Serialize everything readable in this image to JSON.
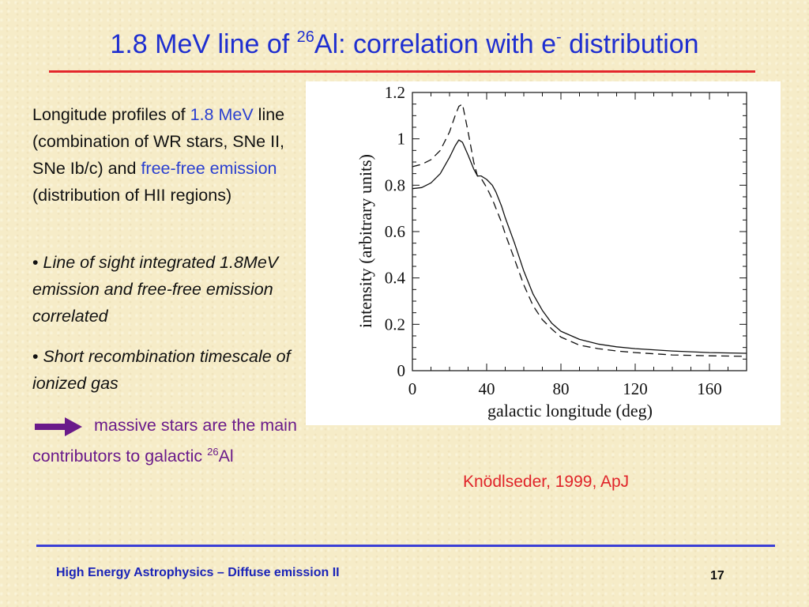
{
  "slide": {
    "title_pre": "1.8 MeV line of ",
    "title_sup1": "26",
    "title_mid": "Al: correlation with e",
    "title_sup2": "-",
    "title_post": " distribution",
    "para1": {
      "t1": "Longitude profiles of ",
      "t2": "1.8 MeV",
      "t3": " line (combination of WR stars, SNe II, SNe Ib/c) and ",
      "t4": "free-free emission",
      "t5": " (distribution of HII regions)"
    },
    "bullet_char": "•",
    "bullet1": "Line of sight integrated 1.8MeV emission and free-free emission correlated",
    "bullet2": "Short recombination timescale of ionized gas",
    "conclusion": {
      "t1": "massive stars are the main contributors to galactic ",
      "sup": "26",
      "t2": "Al"
    },
    "citation": "Knödlseder, 1999, ApJ",
    "footer": "High Energy Astrophysics – Diffuse emission II",
    "page_number": "17"
  },
  "colors": {
    "title": "#1f2fd0",
    "title_rule": "#e3262b",
    "highlight_blue": "#2a3fd0",
    "conclusion_purple": "#6a1a8a",
    "citation_red": "#e0242a",
    "footer_blue": "#1b24b8",
    "footer_rule": "#3b3fd6",
    "arrow": "#6a1a8a"
  },
  "chart_data": {
    "type": "line",
    "xlabel": "galactic longitude (deg)",
    "ylabel": "intensity (arbitrary units)",
    "xlim": [
      0,
      180
    ],
    "ylim": [
      0,
      1.2
    ],
    "xticks": [
      "0",
      "40",
      "80",
      "120",
      "160"
    ],
    "yticks": [
      "0",
      "0.2",
      "0.4",
      "0.6",
      "0.8",
      "1",
      "1.2"
    ],
    "grid": false,
    "series": [
      {
        "style": "solid",
        "x": [
          0,
          5,
          10,
          15,
          20,
          23,
          25,
          27,
          30,
          33,
          35,
          37,
          40,
          43,
          45,
          48,
          50,
          55,
          60,
          65,
          70,
          75,
          80,
          90,
          100,
          110,
          120,
          140,
          160,
          180
        ],
        "y": [
          0.785,
          0.79,
          0.81,
          0.85,
          0.92,
          0.97,
          0.995,
          0.985,
          0.93,
          0.87,
          0.84,
          0.84,
          0.825,
          0.8,
          0.77,
          0.71,
          0.66,
          0.55,
          0.43,
          0.33,
          0.26,
          0.205,
          0.17,
          0.135,
          0.115,
          0.103,
          0.095,
          0.085,
          0.078,
          0.075
        ]
      },
      {
        "style": "dashed",
        "x": [
          0,
          5,
          10,
          15,
          20,
          23,
          25,
          27,
          30,
          33,
          35,
          37,
          40,
          43,
          45,
          48,
          50,
          55,
          60,
          65,
          70,
          75,
          80,
          90,
          100,
          110,
          120,
          140,
          160,
          180
        ],
        "y": [
          0.88,
          0.89,
          0.91,
          0.95,
          1.03,
          1.1,
          1.14,
          1.15,
          1.03,
          0.9,
          0.84,
          0.83,
          0.79,
          0.74,
          0.7,
          0.64,
          0.59,
          0.48,
          0.37,
          0.28,
          0.22,
          0.18,
          0.145,
          0.11,
          0.095,
          0.085,
          0.078,
          0.068,
          0.064,
          0.062
        ]
      }
    ]
  }
}
